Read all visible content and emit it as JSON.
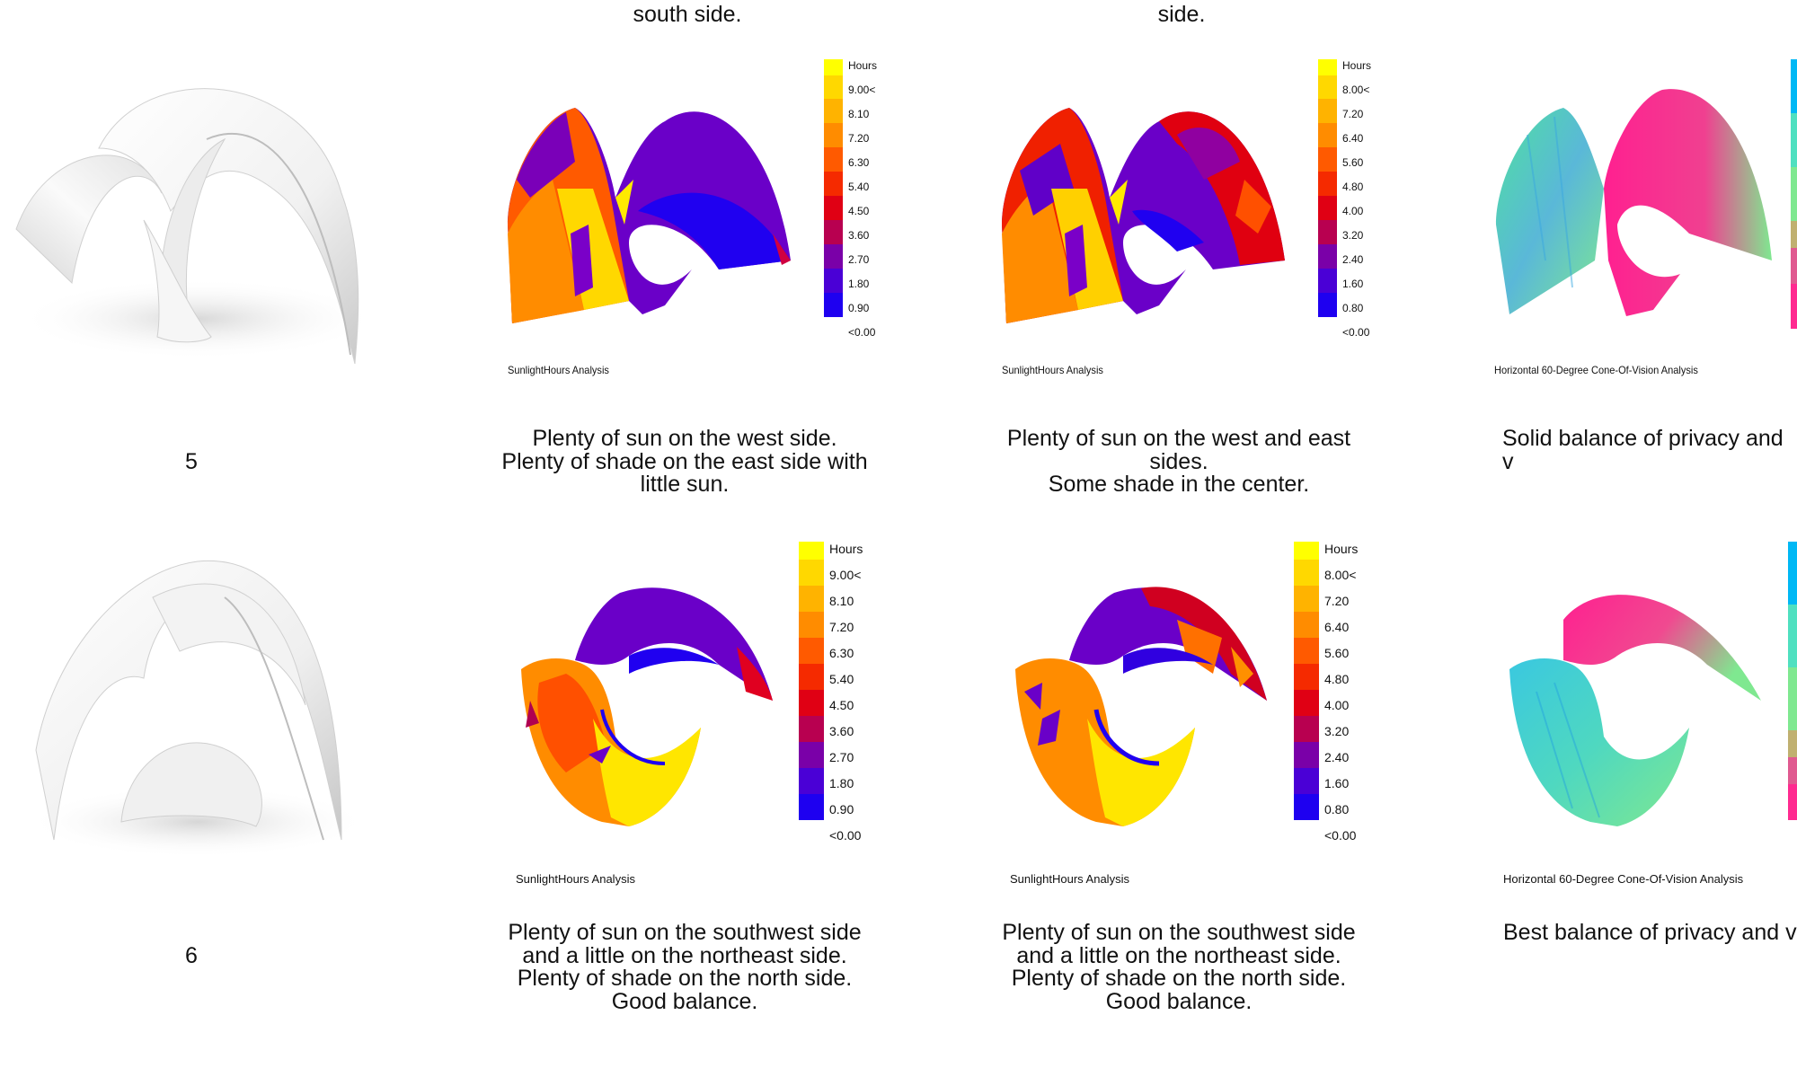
{
  "top_captions": {
    "left": "south side.",
    "middle": "side."
  },
  "rows": [
    {
      "number": "5",
      "captions": [
        "Plenty of sun on the west side.\nPlenty of shade on the east side with\nlittle sun.",
        "Plenty of sun on the west and east\nsides.\nSome shade in the center.",
        "Solid balance of privacy and v"
      ],
      "panel_labels": [
        "SunlightHours Analysis",
        "SunlightHours Analysis",
        "Horizontal 60-Degree Cone-Of-Vision Analysis"
      ],
      "legend_a": [
        "Hours",
        "9.00<",
        "8.10",
        "7.20",
        "6.30",
        "5.40",
        "4.50",
        "3.60",
        "2.70",
        "1.80",
        "0.90",
        "<0.00"
      ],
      "legend_b": [
        "Hours",
        "8.00<",
        "7.20",
        "6.40",
        "5.60",
        "4.80",
        "4.00",
        "3.20",
        "2.40",
        "1.60",
        "0.80",
        "<0.00"
      ]
    },
    {
      "number": "6",
      "captions": [
        "Plenty of sun on the southwest side\nand a little on the northeast side.\nPlenty of shade on the north side.\nGood balance.",
        "Plenty of sun on the southwest side\nand a little on the northeast side.\nPlenty of shade on the north side.\nGood balance.",
        "Best balance of privacy and v"
      ],
      "panel_labels": [
        "SunlightHours Analysis",
        "SunlightHours Analysis",
        "Horizontal 60-Degree Cone-Of-Vision Analysis"
      ],
      "legend_a": [
        "Hours",
        "9.00<",
        "8.10",
        "7.20",
        "6.30",
        "5.40",
        "4.50",
        "3.60",
        "2.70",
        "1.80",
        "0.90",
        "<0.00"
      ],
      "legend_b": [
        "Hours",
        "8.00<",
        "7.20",
        "6.40",
        "5.60",
        "4.80",
        "4.00",
        "3.20",
        "2.40",
        "1.60",
        "0.80",
        "<0.00"
      ]
    }
  ],
  "colors": {
    "hours_scale": [
      "#ffff00",
      "#ffd800",
      "#ffb300",
      "#ff8c00",
      "#ff5a00",
      "#f52a00",
      "#e00014",
      "#b80050",
      "#7a00a8",
      "#4a00d6",
      "#1e00f0",
      "#0000ff"
    ],
    "vision_scale": [
      "#00b8f5",
      "#22d0e0",
      "#4fe0c0",
      "#7fe890",
      "#a5d878",
      "#c0b070",
      "#e05a90",
      "#ff2a90"
    ]
  }
}
